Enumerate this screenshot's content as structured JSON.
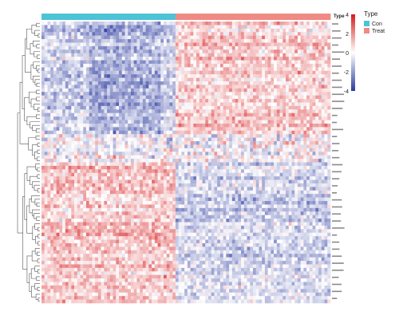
{
  "chart_data": {
    "type": "heatmap",
    "title": "",
    "annotation": {
      "title": "Type",
      "groups": [
        {
          "name": "Con",
          "color": "#4dc3d6",
          "count": 45
        },
        {
          "name": "Treat",
          "color": "#f08a84",
          "count": 52
        }
      ]
    },
    "color_scale": {
      "min": -4,
      "max": 4,
      "ticks": [
        4,
        2,
        0,
        -2,
        -4
      ],
      "low_color": "#2b3aa0",
      "mid_color": "#ffffff",
      "high_color": "#d7191c"
    },
    "n_rows": 80,
    "gene_clusters": [
      {
        "rows": 32,
        "pattern": "down_in_con_up_in_treat"
      },
      {
        "rows": 8,
        "pattern": "variable_band"
      },
      {
        "rows": 40,
        "pattern": "up_in_con_down_in_treat"
      }
    ],
    "row_labels_visible": false,
    "dendrogram": "rows"
  }
}
